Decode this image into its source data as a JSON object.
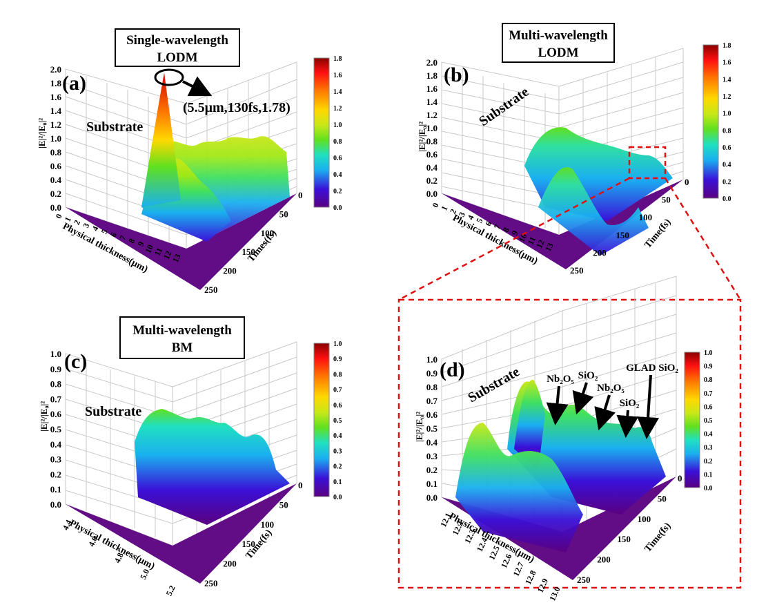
{
  "chart_data": [
    {
      "panel": "a",
      "type": "surface3d",
      "panel_label": "(a)",
      "title": "Single-wavelength\nLODM",
      "region_label": "Substrate",
      "annotation": "(5.5μm,130fs,1.78)",
      "zlabel": "|E|²/|E₀|²",
      "xlabel": "Physical thickness(μm)",
      "ylabel": "Times(fs)",
      "x_ticks": [
        "0",
        "1",
        "2",
        "3",
        "4",
        "5",
        "6",
        "7",
        "8",
        "9",
        "10",
        "11",
        "12",
        "13"
      ],
      "y_ticks": [
        "0",
        "50",
        "100",
        "150",
        "200",
        "250"
      ],
      "z_ticks": [
        "0.0",
        "0.2",
        "0.4",
        "0.6",
        "0.8",
        "1.0",
        "1.2",
        "1.4",
        "1.6",
        "1.8",
        "2.0"
      ],
      "colorbar_ticks": [
        "0.0",
        "0.2",
        "0.4",
        "0.6",
        "0.8",
        "1.0",
        "1.2",
        "1.4",
        "1.6",
        "1.8"
      ],
      "zlim": [
        0,
        2.0
      ],
      "peak": {
        "x": 5.5,
        "t": 130,
        "value": 1.78
      }
    },
    {
      "panel": "b",
      "type": "surface3d",
      "panel_label": "(b)",
      "title": "Multi-wavelength\nLODM",
      "region_label": "Substrate",
      "zlabel": "|E|²/|E₀|²",
      "xlabel": "Physical thickness(μm)",
      "ylabel": "Time(fs)",
      "x_ticks": [
        "0",
        "1",
        "2",
        "3",
        "4",
        "5",
        "6",
        "7",
        "8",
        "9",
        "10",
        "11",
        "12",
        "13"
      ],
      "y_ticks": [
        "0",
        "50",
        "100",
        "150",
        "200",
        "250"
      ],
      "z_ticks": [
        "0.0",
        "0.2",
        "0.4",
        "0.6",
        "0.8",
        "1.0",
        "1.2",
        "1.4",
        "1.6",
        "1.8",
        "2.0"
      ],
      "colorbar_ticks": [
        "0.0",
        "0.2",
        "0.4",
        "0.6",
        "0.8",
        "1.0",
        "1.2",
        "1.4",
        "1.6",
        "1.8"
      ],
      "zlim": [
        0,
        2.0
      ]
    },
    {
      "panel": "c",
      "type": "surface3d",
      "panel_label": "(c)",
      "title": "Multi-wavelength\nBM",
      "region_label": "Substrate",
      "zlabel": "|E|²/|E₀|²",
      "xlabel": "Physical thickness(μm)",
      "ylabel": "Time(fs)",
      "x_ticks": [
        "4.4",
        "4.6",
        "4.8",
        "5.0",
        "5.2"
      ],
      "y_ticks": [
        "0",
        "50",
        "100",
        "150",
        "200",
        "250"
      ],
      "z_ticks": [
        "0.0",
        "0.1",
        "0.2",
        "0.3",
        "0.4",
        "0.5",
        "0.6",
        "0.7",
        "0.8",
        "0.9",
        "1.0"
      ],
      "colorbar_ticks": [
        "0.0",
        "0.1",
        "0.2",
        "0.3",
        "0.4",
        "0.5",
        "0.6",
        "0.7",
        "0.8",
        "0.9",
        "1.0"
      ],
      "zlim": [
        0,
        1.0
      ]
    },
    {
      "panel": "d",
      "type": "surface3d",
      "panel_label": "(d)",
      "region_label": "Substrate",
      "layer_labels": [
        "Nb₂O₅",
        "SiO₂",
        "Nb₂O₅",
        "SiO₂",
        "GLAD SiO₂"
      ],
      "zlabel": "|E|²/|E₀|²",
      "xlabel": "Physical thickness(μm)",
      "ylabel": "Time(fs)",
      "x_ticks": [
        "12.1",
        "12.2",
        "12.3",
        "12.4",
        "12.5",
        "12.6",
        "12.7",
        "12.8",
        "12.9",
        "13.0"
      ],
      "y_ticks": [
        "0",
        "50",
        "100",
        "150",
        "200",
        "250"
      ],
      "z_ticks": [
        "0.0",
        "0.1",
        "0.2",
        "0.3",
        "0.4",
        "0.5",
        "0.6",
        "0.7",
        "0.8",
        "0.9",
        "1.0"
      ],
      "colorbar_ticks": [
        "0.0",
        "0.1",
        "0.2",
        "0.3",
        "0.4",
        "0.5",
        "0.6",
        "0.7",
        "0.8",
        "0.9",
        "1.0"
      ],
      "zlim": [
        0,
        1.0
      ]
    }
  ],
  "colors": {
    "colormap": [
      "#5a0080",
      "#3a10d8",
      "#1ab0f0",
      "#20e0c0",
      "#60e020",
      "#c8e818",
      "#ffd800",
      "#ff7a00",
      "#ff1010",
      "#8a0000"
    ],
    "grid": "#c8c8c8",
    "dash": "#e01010"
  }
}
